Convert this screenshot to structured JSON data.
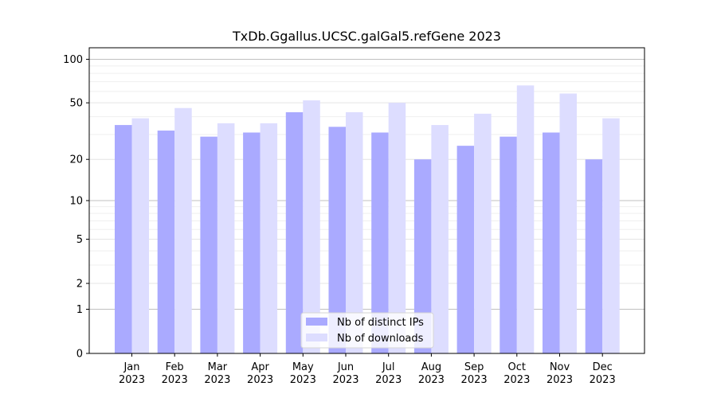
{
  "chart_data": {
    "type": "bar",
    "title": "TxDb.Ggallus.UCSC.galGal5.refGene 2023",
    "xlabel": "",
    "ylabel": "",
    "y_scale": "log1p",
    "ylim": [
      0,
      120
    ],
    "y_ticks": [
      0,
      1,
      2,
      5,
      10,
      20,
      50,
      100
    ],
    "y_tick_labels": [
      "0",
      "1",
      "2",
      "5",
      "10",
      "20",
      "50",
      "100"
    ],
    "categories": [
      "Jan\n2023",
      "Feb\n2023",
      "Mar\n2023",
      "Apr\n2023",
      "May\n2023",
      "Jun\n2023",
      "Jul\n2023",
      "Aug\n2023",
      "Sep\n2023",
      "Oct\n2023",
      "Nov\n2023",
      "Dec\n2023"
    ],
    "series": [
      {
        "name": "Nb of distinct IPs",
        "color": "#aaaaff",
        "values": [
          35,
          32,
          29,
          31,
          43,
          34,
          31,
          20,
          25,
          29,
          31,
          20
        ]
      },
      {
        "name": "Nb of downloads",
        "color": "#ddddff",
        "values": [
          39,
          46,
          36,
          36,
          52,
          43,
          50,
          35,
          42,
          66,
          58,
          39
        ]
      }
    ],
    "grid": "horizontal",
    "legend_position": "bottom-center"
  }
}
